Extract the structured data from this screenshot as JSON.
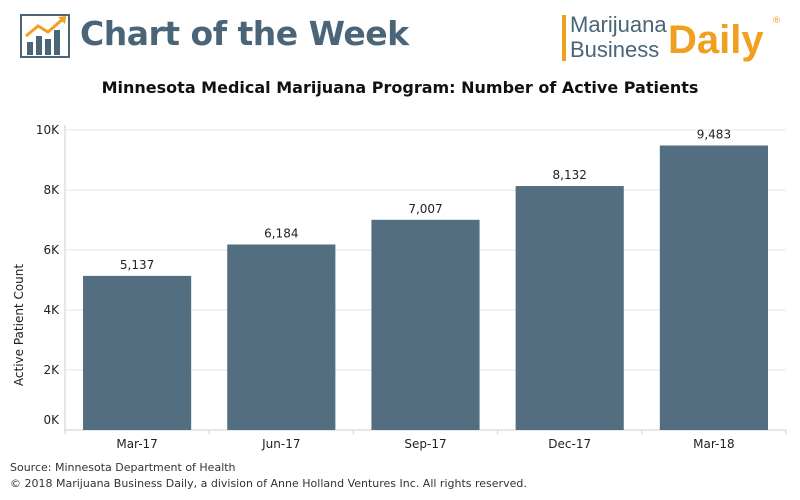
{
  "header": {
    "title": "Chart of the Week",
    "logo_icon": "bar-chart-trend-icon",
    "brand": {
      "line1": "Marijuana",
      "line2": "Business",
      "daily": "Daily",
      "reg": "®"
    }
  },
  "colors": {
    "bar": "#536e81",
    "title_blue": "#4a6478",
    "brand_orange": "#f0a020"
  },
  "chart_data": {
    "type": "bar",
    "title": "Minnesota Medical Marijuana Program: Number of Active Patients",
    "ylabel": "Active Patient Count",
    "xlabel": "",
    "categories": [
      "Mar-17",
      "Jun-17",
      "Sep-17",
      "Dec-17",
      "Mar-18"
    ],
    "values": [
      5137,
      6184,
      7007,
      8132,
      9483
    ],
    "value_labels": [
      "5,137",
      "6,184",
      "7,007",
      "8,132",
      "9,483"
    ],
    "ylim": [
      0,
      10000
    ],
    "yticks": [
      0,
      2000,
      4000,
      6000,
      8000,
      10000
    ],
    "ytick_labels": [
      "0K",
      "2K",
      "4K",
      "6K",
      "8K",
      "10K"
    ],
    "grid": true
  },
  "footer": {
    "source": "Source: Minnesota Department of Health",
    "copyright": "© 2018 Marijuana Business Daily, a division of Anne Holland Ventures Inc. All rights reserved."
  }
}
